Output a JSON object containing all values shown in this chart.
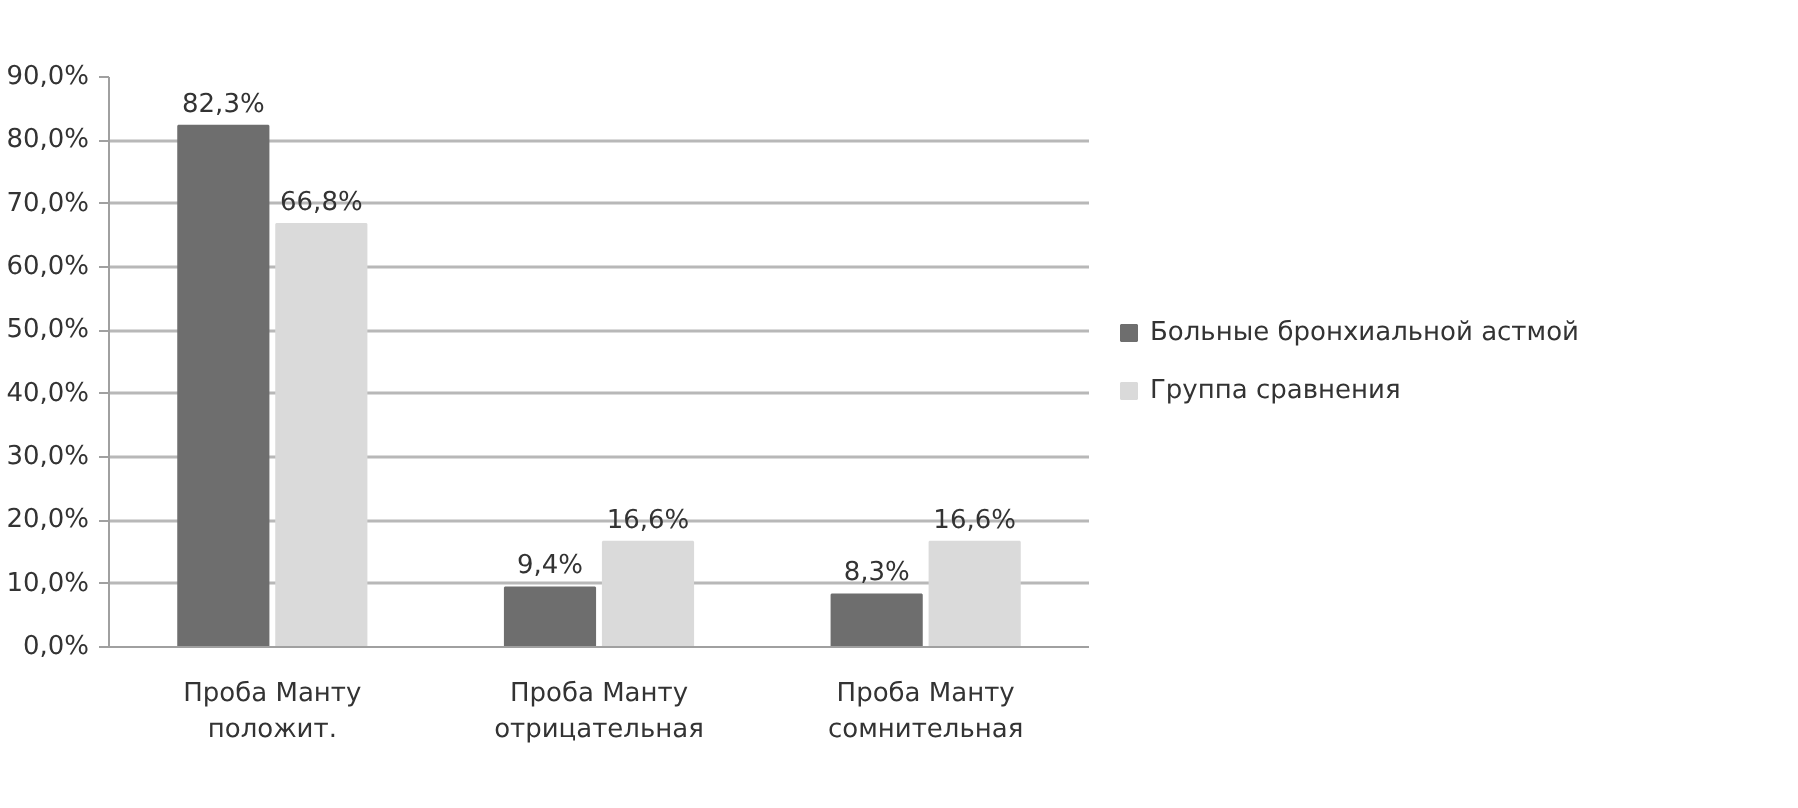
{
  "chart_data": {
    "type": "bar",
    "categories": [
      "Проба Манту положит.",
      "Проба Манту отрицательная",
      "Проба Манту сомнительная"
    ],
    "series": [
      {
        "name": "Больные бронхиальной астмой",
        "color": "#6e6e6e",
        "values": [
          82.3,
          9.4,
          8.3
        ],
        "value_labels": [
          "82,3%",
          "9,4%",
          "8,3%"
        ]
      },
      {
        "name": "Группа сравнения",
        "color": "#dadada",
        "values": [
          66.8,
          16.6,
          16.6
        ],
        "value_labels": [
          "66,8%",
          "16,6%",
          "16,6%"
        ]
      }
    ],
    "ylim": [
      0,
      90
    ],
    "yticks": [
      {
        "value": 0,
        "label": "0,0%"
      },
      {
        "value": 10,
        "label": "10,0%"
      },
      {
        "value": 20,
        "label": "20,0%"
      },
      {
        "value": 30,
        "label": "30,0%"
      },
      {
        "value": 40,
        "label": "40,0%"
      },
      {
        "value": 50,
        "label": "50,0%"
      },
      {
        "value": 60,
        "label": "60,0%"
      },
      {
        "value": 70,
        "label": "70,0%"
      },
      {
        "value": 80,
        "label": "80,0%"
      },
      {
        "value": 90,
        "label": "90,0%"
      }
    ],
    "grid": "y",
    "legend": "right"
  }
}
